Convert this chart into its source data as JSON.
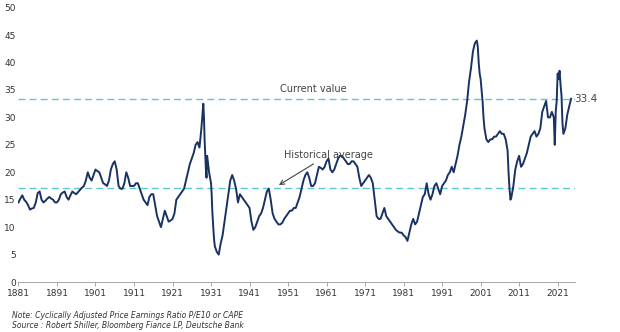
{
  "ylim": [
    0,
    50
  ],
  "yticks": [
    0,
    5,
    10,
    15,
    20,
    25,
    30,
    35,
    40,
    45,
    50
  ],
  "xticks": [
    1881,
    1891,
    1901,
    1911,
    1921,
    1931,
    1941,
    1951,
    1961,
    1971,
    1981,
    1991,
    2001,
    2011,
    2021
  ],
  "xlim_left": 1881,
  "xlim_right": 2025.5,
  "current_value_line": 33.4,
  "historical_average_line": 17.1,
  "current_value_label": "Current value",
  "historical_average_label": "Historical average",
  "current_value_annotation": "33.4",
  "line_color": "#1a3263",
  "dashed_line_color": "#5bc8d5",
  "background_color": "#ffffff",
  "note_text": "Note: Cyclically Adjusted Price Earnings Ratio P/E10 or CAPE\nSource : Robert Shiller, Bloomberg Fiance LP, Deutsche Bank",
  "cape_data": [
    [
      1881.0,
      14.5
    ],
    [
      1881.5,
      15.2
    ],
    [
      1882.0,
      15.8
    ],
    [
      1882.5,
      15.0
    ],
    [
      1883.0,
      14.6
    ],
    [
      1883.5,
      14.0
    ],
    [
      1884.0,
      13.2
    ],
    [
      1884.5,
      13.4
    ],
    [
      1885.0,
      13.5
    ],
    [
      1885.5,
      14.5
    ],
    [
      1886.0,
      16.2
    ],
    [
      1886.5,
      16.5
    ],
    [
      1887.0,
      15.0
    ],
    [
      1887.5,
      14.5
    ],
    [
      1888.0,
      14.8
    ],
    [
      1888.5,
      15.2
    ],
    [
      1889.0,
      15.5
    ],
    [
      1889.5,
      15.2
    ],
    [
      1890.0,
      15.0
    ],
    [
      1890.5,
      14.5
    ],
    [
      1891.0,
      14.5
    ],
    [
      1891.5,
      15.0
    ],
    [
      1892.0,
      16.0
    ],
    [
      1892.5,
      16.3
    ],
    [
      1893.0,
      16.5
    ],
    [
      1893.5,
      15.5
    ],
    [
      1894.0,
      15.0
    ],
    [
      1894.5,
      15.8
    ],
    [
      1895.0,
      16.5
    ],
    [
      1895.5,
      16.2
    ],
    [
      1896.0,
      16.0
    ],
    [
      1896.5,
      16.4
    ],
    [
      1897.0,
      16.8
    ],
    [
      1897.5,
      17.2
    ],
    [
      1898.0,
      17.5
    ],
    [
      1898.5,
      18.5
    ],
    [
      1899.0,
      20.0
    ],
    [
      1899.5,
      19.0
    ],
    [
      1900.0,
      18.5
    ],
    [
      1900.5,
      19.5
    ],
    [
      1901.0,
      20.5
    ],
    [
      1901.5,
      20.2
    ],
    [
      1902.0,
      20.0
    ],
    [
      1902.5,
      19.0
    ],
    [
      1903.0,
      18.0
    ],
    [
      1903.5,
      17.8
    ],
    [
      1904.0,
      17.5
    ],
    [
      1904.5,
      18.5
    ],
    [
      1905.0,
      20.5
    ],
    [
      1905.5,
      21.5
    ],
    [
      1906.0,
      22.0
    ],
    [
      1906.5,
      20.5
    ],
    [
      1907.0,
      17.5
    ],
    [
      1907.5,
      17.0
    ],
    [
      1908.0,
      17.0
    ],
    [
      1908.5,
      18.0
    ],
    [
      1909.0,
      20.0
    ],
    [
      1909.5,
      19.0
    ],
    [
      1910.0,
      17.5
    ],
    [
      1910.5,
      17.5
    ],
    [
      1911.0,
      17.5
    ],
    [
      1911.5,
      18.0
    ],
    [
      1912.0,
      18.0
    ],
    [
      1912.5,
      17.0
    ],
    [
      1913.0,
      16.0
    ],
    [
      1913.5,
      15.0
    ],
    [
      1914.0,
      14.5
    ],
    [
      1914.5,
      14.0
    ],
    [
      1915.0,
      15.5
    ],
    [
      1915.5,
      16.0
    ],
    [
      1916.0,
      16.0
    ],
    [
      1916.5,
      14.0
    ],
    [
      1917.0,
      12.0
    ],
    [
      1917.5,
      11.0
    ],
    [
      1918.0,
      10.0
    ],
    [
      1918.5,
      11.5
    ],
    [
      1919.0,
      13.0
    ],
    [
      1919.5,
      12.0
    ],
    [
      1920.0,
      11.0
    ],
    [
      1920.5,
      11.2
    ],
    [
      1921.0,
      11.5
    ],
    [
      1921.5,
      12.5
    ],
    [
      1922.0,
      15.0
    ],
    [
      1922.5,
      15.5
    ],
    [
      1923.0,
      16.0
    ],
    [
      1923.5,
      16.5
    ],
    [
      1924.0,
      17.0
    ],
    [
      1924.5,
      18.5
    ],
    [
      1925.0,
      20.0
    ],
    [
      1925.5,
      21.5
    ],
    [
      1926.0,
      22.5
    ],
    [
      1926.5,
      23.5
    ],
    [
      1927.0,
      25.0
    ],
    [
      1927.5,
      25.5
    ],
    [
      1928.0,
      24.5
    ],
    [
      1928.5,
      28.0
    ],
    [
      1929.0,
      32.5
    ],
    [
      1929.17,
      30.0
    ],
    [
      1929.33,
      26.0
    ],
    [
      1929.5,
      23.0
    ],
    [
      1929.67,
      20.5
    ],
    [
      1929.83,
      19.0
    ],
    [
      1930.0,
      23.0
    ],
    [
      1930.5,
      20.0
    ],
    [
      1931.0,
      18.0
    ],
    [
      1931.17,
      16.0
    ],
    [
      1931.33,
      13.0
    ],
    [
      1931.5,
      11.0
    ],
    [
      1931.67,
      9.0
    ],
    [
      1931.83,
      7.5
    ],
    [
      1932.0,
      6.5
    ],
    [
      1932.5,
      5.5
    ],
    [
      1933.0,
      5.0
    ],
    [
      1933.5,
      7.0
    ],
    [
      1934.0,
      8.5
    ],
    [
      1934.5,
      11.0
    ],
    [
      1935.0,
      13.5
    ],
    [
      1935.5,
      16.0
    ],
    [
      1936.0,
      18.5
    ],
    [
      1936.5,
      19.5
    ],
    [
      1937.0,
      18.5
    ],
    [
      1937.5,
      17.0
    ],
    [
      1938.0,
      14.5
    ],
    [
      1938.5,
      16.0
    ],
    [
      1939.0,
      15.5
    ],
    [
      1939.5,
      15.0
    ],
    [
      1940.0,
      14.5
    ],
    [
      1940.5,
      14.0
    ],
    [
      1941.0,
      13.5
    ],
    [
      1941.5,
      11.0
    ],
    [
      1942.0,
      9.5
    ],
    [
      1942.5,
      10.0
    ],
    [
      1943.0,
      11.0
    ],
    [
      1943.5,
      12.0
    ],
    [
      1944.0,
      12.5
    ],
    [
      1944.5,
      13.5
    ],
    [
      1945.0,
      15.0
    ],
    [
      1945.5,
      16.5
    ],
    [
      1946.0,
      17.0
    ],
    [
      1946.5,
      15.0
    ],
    [
      1947.0,
      12.5
    ],
    [
      1947.5,
      11.5
    ],
    [
      1948.0,
      11.0
    ],
    [
      1948.5,
      10.5
    ],
    [
      1949.0,
      10.5
    ],
    [
      1949.5,
      10.8
    ],
    [
      1950.0,
      11.5
    ],
    [
      1950.5,
      12.0
    ],
    [
      1951.0,
      12.5
    ],
    [
      1951.5,
      13.0
    ],
    [
      1952.0,
      13.0
    ],
    [
      1952.5,
      13.5
    ],
    [
      1953.0,
      13.5
    ],
    [
      1953.5,
      14.5
    ],
    [
      1954.0,
      15.5
    ],
    [
      1954.5,
      17.0
    ],
    [
      1955.0,
      18.5
    ],
    [
      1955.5,
      19.5
    ],
    [
      1956.0,
      20.0
    ],
    [
      1956.5,
      19.0
    ],
    [
      1957.0,
      17.5
    ],
    [
      1957.5,
      17.5
    ],
    [
      1958.0,
      18.0
    ],
    [
      1958.5,
      19.5
    ],
    [
      1959.0,
      21.0
    ],
    [
      1959.5,
      20.8
    ],
    [
      1960.0,
      20.5
    ],
    [
      1960.5,
      21.0
    ],
    [
      1961.0,
      22.0
    ],
    [
      1961.5,
      22.5
    ],
    [
      1962.0,
      20.5
    ],
    [
      1962.5,
      20.0
    ],
    [
      1963.0,
      20.5
    ],
    [
      1963.5,
      21.5
    ],
    [
      1964.0,
      22.5
    ],
    [
      1964.5,
      23.0
    ],
    [
      1965.0,
      23.0
    ],
    [
      1965.5,
      22.5
    ],
    [
      1966.0,
      22.0
    ],
    [
      1966.5,
      21.5
    ],
    [
      1967.0,
      21.5
    ],
    [
      1967.5,
      22.0
    ],
    [
      1968.0,
      22.0
    ],
    [
      1968.5,
      21.5
    ],
    [
      1969.0,
      21.0
    ],
    [
      1969.5,
      19.0
    ],
    [
      1970.0,
      17.5
    ],
    [
      1970.5,
      18.0
    ],
    [
      1971.0,
      18.5
    ],
    [
      1971.5,
      19.0
    ],
    [
      1972.0,
      19.5
    ],
    [
      1972.5,
      19.0
    ],
    [
      1973.0,
      18.0
    ],
    [
      1973.5,
      15.0
    ],
    [
      1974.0,
      12.0
    ],
    [
      1974.5,
      11.5
    ],
    [
      1975.0,
      11.5
    ],
    [
      1975.5,
      12.5
    ],
    [
      1976.0,
      13.5
    ],
    [
      1976.5,
      12.0
    ],
    [
      1977.0,
      11.5
    ],
    [
      1977.5,
      11.0
    ],
    [
      1978.0,
      10.5
    ],
    [
      1978.5,
      10.0
    ],
    [
      1979.0,
      9.5
    ],
    [
      1979.5,
      9.2
    ],
    [
      1980.0,
      9.0
    ],
    [
      1980.5,
      9.0
    ],
    [
      1981.0,
      8.5
    ],
    [
      1981.5,
      8.2
    ],
    [
      1982.0,
      7.5
    ],
    [
      1982.5,
      9.0
    ],
    [
      1983.0,
      10.5
    ],
    [
      1983.5,
      11.5
    ],
    [
      1984.0,
      10.5
    ],
    [
      1984.5,
      11.0
    ],
    [
      1985.0,
      12.5
    ],
    [
      1985.5,
      14.0
    ],
    [
      1986.0,
      15.5
    ],
    [
      1986.5,
      16.0
    ],
    [
      1987.0,
      18.0
    ],
    [
      1987.5,
      16.0
    ],
    [
      1988.0,
      15.0
    ],
    [
      1988.5,
      16.0
    ],
    [
      1989.0,
      17.5
    ],
    [
      1989.5,
      18.0
    ],
    [
      1990.0,
      17.0
    ],
    [
      1990.5,
      16.0
    ],
    [
      1991.0,
      17.5
    ],
    [
      1991.5,
      18.0
    ],
    [
      1992.0,
      18.5
    ],
    [
      1992.5,
      19.5
    ],
    [
      1993.0,
      20.0
    ],
    [
      1993.5,
      21.0
    ],
    [
      1994.0,
      20.0
    ],
    [
      1994.5,
      21.5
    ],
    [
      1995.0,
      23.0
    ],
    [
      1995.5,
      25.0
    ],
    [
      1996.0,
      26.5
    ],
    [
      1996.5,
      28.5
    ],
    [
      1997.0,
      30.5
    ],
    [
      1997.5,
      33.0
    ],
    [
      1998.0,
      36.5
    ],
    [
      1998.5,
      39.0
    ],
    [
      1999.0,
      42.0
    ],
    [
      1999.5,
      43.5
    ],
    [
      2000.0,
      44.0
    ],
    [
      2000.25,
      43.0
    ],
    [
      2000.5,
      40.0
    ],
    [
      2000.75,
      38.0
    ],
    [
      2001.0,
      37.0
    ],
    [
      2001.25,
      35.0
    ],
    [
      2001.5,
      33.0
    ],
    [
      2001.75,
      30.0
    ],
    [
      2002.0,
      28.0
    ],
    [
      2002.5,
      26.0
    ],
    [
      2003.0,
      25.5
    ],
    [
      2003.5,
      26.0
    ],
    [
      2004.0,
      26.0
    ],
    [
      2004.5,
      26.5
    ],
    [
      2005.0,
      26.5
    ],
    [
      2005.5,
      27.0
    ],
    [
      2006.0,
      27.5
    ],
    [
      2006.5,
      27.0
    ],
    [
      2007.0,
      27.0
    ],
    [
      2007.5,
      26.0
    ],
    [
      2008.0,
      24.0
    ],
    [
      2008.25,
      20.0
    ],
    [
      2008.5,
      17.0
    ],
    [
      2008.75,
      15.0
    ],
    [
      2009.0,
      15.5
    ],
    [
      2009.5,
      17.5
    ],
    [
      2010.0,
      20.5
    ],
    [
      2010.5,
      22.0
    ],
    [
      2011.0,
      23.0
    ],
    [
      2011.5,
      21.0
    ],
    [
      2012.0,
      21.5
    ],
    [
      2012.5,
      22.5
    ],
    [
      2013.0,
      23.5
    ],
    [
      2013.5,
      25.0
    ],
    [
      2014.0,
      26.5
    ],
    [
      2014.5,
      27.0
    ],
    [
      2015.0,
      27.5
    ],
    [
      2015.5,
      26.5
    ],
    [
      2016.0,
      27.0
    ],
    [
      2016.5,
      28.0
    ],
    [
      2017.0,
      31.0
    ],
    [
      2017.5,
      32.0
    ],
    [
      2018.0,
      33.0
    ],
    [
      2018.5,
      30.0
    ],
    [
      2019.0,
      30.0
    ],
    [
      2019.5,
      31.0
    ],
    [
      2020.0,
      30.0
    ],
    [
      2020.25,
      25.0
    ],
    [
      2020.5,
      31.0
    ],
    [
      2020.75,
      33.0
    ],
    [
      2021.0,
      38.0
    ],
    [
      2021.25,
      37.0
    ],
    [
      2021.5,
      38.5
    ],
    [
      2021.75,
      36.0
    ],
    [
      2022.0,
      34.0
    ],
    [
      2022.25,
      29.0
    ],
    [
      2022.5,
      27.0
    ],
    [
      2022.75,
      27.5
    ],
    [
      2023.0,
      28.0
    ],
    [
      2023.5,
      30.5
    ],
    [
      2024.0,
      32.0
    ],
    [
      2024.5,
      33.4
    ]
  ]
}
